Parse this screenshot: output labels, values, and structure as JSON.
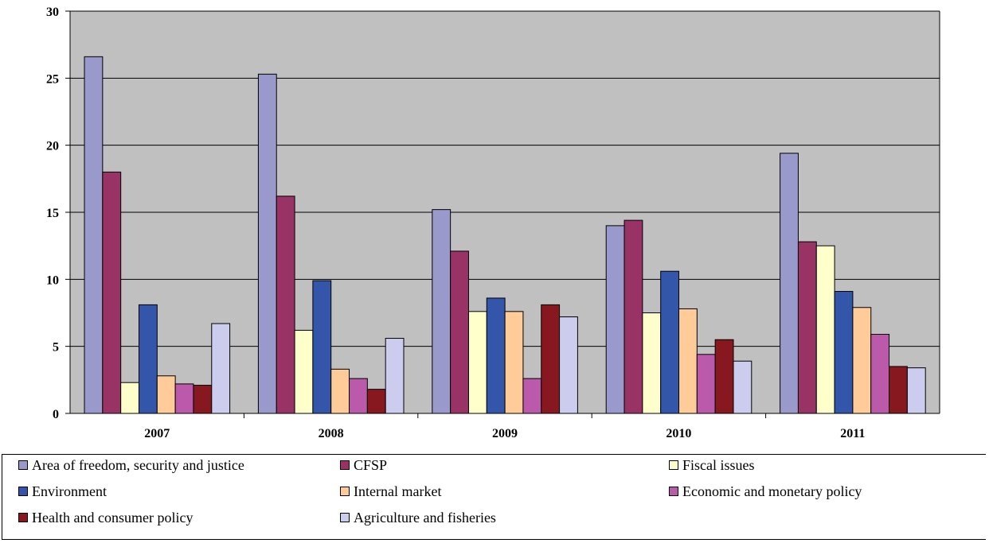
{
  "chart_data": {
    "type": "bar",
    "categories": [
      "2007",
      "2008",
      "2009",
      "2010",
      "2011"
    ],
    "ylim": [
      0,
      30
    ],
    "yticks": [
      "0",
      "5",
      "10",
      "15",
      "20",
      "25",
      "30"
    ],
    "grid": true,
    "legend_position": "bottom",
    "plot_background": "#c0c0c0",
    "series": [
      {
        "name": "Area of freedom, security and justice",
        "color": "#9999cc",
        "values": [
          26.6,
          25.3,
          15.2,
          14.0,
          19.4
        ]
      },
      {
        "name": "CFSP",
        "color": "#993366",
        "values": [
          18.0,
          16.2,
          12.1,
          14.4,
          12.8
        ]
      },
      {
        "name": "Fiscal issues",
        "color": "#ffffcc",
        "values": [
          2.3,
          6.2,
          7.6,
          7.5,
          12.5
        ]
      },
      {
        "name": "Environment",
        "color": "#3355aa",
        "values": [
          8.1,
          9.9,
          8.6,
          10.6,
          9.1
        ]
      },
      {
        "name": "Internal market",
        "color": "#ffcc99",
        "values": [
          2.8,
          3.3,
          7.6,
          7.8,
          7.9
        ]
      },
      {
        "name": "Economic and monetary policy",
        "color": "#bb5aaa",
        "values": [
          2.2,
          2.6,
          2.6,
          4.4,
          5.9
        ]
      },
      {
        "name": "Health and consumer policy",
        "color": "#881820",
        "values": [
          2.1,
          1.8,
          8.1,
          5.5,
          3.5
        ]
      },
      {
        "name": "Agriculture and fisheries",
        "color": "#ccccee",
        "values": [
          6.7,
          5.6,
          7.2,
          3.9,
          3.4
        ]
      }
    ]
  }
}
